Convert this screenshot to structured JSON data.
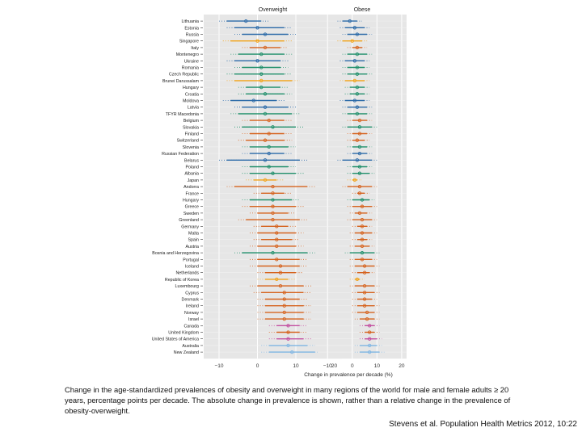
{
  "chart_data": {
    "type": "forest",
    "panels": [
      {
        "title": "Overweight"
      },
      {
        "title": "Obese"
      }
    ],
    "xlabel": "Change in prevalence per decade (%)",
    "xlim": [
      -14,
      22
    ],
    "xticks": [
      -10,
      0,
      10,
      20
    ],
    "colors": {
      "High-income Asia Pacific": "#f2a319",
      "Central Europe": "#1f8f6a",
      "Eastern Europe": "#2b6aa8",
      "Western Europe": "#d6631e",
      "High-income North America": "#c34fa0",
      "Australasia": "#7fb6e4"
    },
    "rows": [
      {
        "country": "Lithuania",
        "region": "Eastern Europe",
        "ow": -3,
        "ow_lo": -8,
        "ow_hi": 1,
        "ob": -1,
        "ob_lo": -4,
        "ob_hi": 2
      },
      {
        "country": "Estonia",
        "region": "Eastern Europe",
        "ow": 0,
        "ow_lo": -6,
        "ow_hi": 7,
        "ob": 1,
        "ob_lo": -3,
        "ob_hi": 5
      },
      {
        "country": "Russia",
        "region": "Eastern Europe",
        "ow": 2,
        "ow_lo": -4,
        "ow_hi": 8,
        "ob": 2,
        "ob_lo": -2,
        "ob_hi": 6
      },
      {
        "country": "Singapore",
        "region": "High-income Asia Pacific",
        "ow": 0,
        "ow_lo": -7,
        "ow_hi": 7,
        "ob": 0,
        "ob_lo": -4,
        "ob_hi": 4
      },
      {
        "country": "Italy",
        "region": "Western Europe",
        "ow": 2,
        "ow_lo": -2,
        "ow_hi": 6,
        "ob": 2,
        "ob_lo": 0,
        "ob_hi": 4
      },
      {
        "country": "Montenegro",
        "region": "Central Europe",
        "ow": 1,
        "ow_lo": -5,
        "ow_hi": 7,
        "ob": 2,
        "ob_lo": -2,
        "ob_hi": 6
      },
      {
        "country": "Ukraine",
        "region": "Eastern Europe",
        "ow": 0,
        "ow_lo": -6,
        "ow_hi": 6,
        "ob": 1,
        "ob_lo": -3,
        "ob_hi": 5
      },
      {
        "country": "Romania",
        "region": "Central Europe",
        "ow": 1,
        "ow_lo": -4,
        "ow_hi": 6,
        "ob": 2,
        "ob_lo": -2,
        "ob_hi": 5
      },
      {
        "country": "Czech Republic",
        "region": "Central Europe",
        "ow": 1,
        "ow_lo": -6,
        "ow_hi": 7,
        "ob": 2,
        "ob_lo": -2,
        "ob_hi": 6
      },
      {
        "country": "Brunei Darussalam",
        "region": "High-income Asia Pacific",
        "ow": 1,
        "ow_lo": -6,
        "ow_hi": 9,
        "ob": 1,
        "ob_lo": -3,
        "ob_hi": 5
      },
      {
        "country": "Hungary",
        "region": "Central Europe",
        "ow": 1,
        "ow_lo": -3,
        "ow_hi": 6,
        "ob": 2,
        "ob_lo": -1,
        "ob_hi": 5
      },
      {
        "country": "Croatia",
        "region": "Central Europe",
        "ow": 2,
        "ow_lo": -3,
        "ow_hi": 7,
        "ob": 2,
        "ob_lo": -1,
        "ob_hi": 5
      },
      {
        "country": "Moldova",
        "region": "Eastern Europe",
        "ow": -1,
        "ow_lo": -7,
        "ow_hi": 5,
        "ob": 1,
        "ob_lo": -3,
        "ob_hi": 5
      },
      {
        "country": "Latvia",
        "region": "Eastern Europe",
        "ow": 2,
        "ow_lo": -4,
        "ow_hi": 8,
        "ob": 2,
        "ob_lo": -2,
        "ob_hi": 6
      },
      {
        "country": "TFYR Macedonia",
        "region": "Central Europe",
        "ow": 2,
        "ow_lo": -5,
        "ow_hi": 9,
        "ob": 2,
        "ob_lo": -2,
        "ob_hi": 6
      },
      {
        "country": "Belgium",
        "region": "Western Europe",
        "ow": 3,
        "ow_lo": -2,
        "ow_hi": 7,
        "ob": 3,
        "ob_lo": 0,
        "ob_hi": 6
      },
      {
        "country": "Slovakia",
        "region": "Central Europe",
        "ow": 4,
        "ow_lo": -4,
        "ow_hi": 10,
        "ob": 3,
        "ob_lo": -2,
        "ob_hi": 8
      },
      {
        "country": "Finland",
        "region": "Western Europe",
        "ow": 3,
        "ow_lo": -2,
        "ow_hi": 7,
        "ob": 3,
        "ob_lo": 0,
        "ob_hi": 6
      },
      {
        "country": "Switzerland",
        "region": "Western Europe",
        "ow": 2,
        "ow_lo": -3,
        "ow_hi": 7,
        "ob": 2,
        "ob_lo": 0,
        "ob_hi": 5
      },
      {
        "country": "Slovenia",
        "region": "Central Europe",
        "ow": 3,
        "ow_lo": -2,
        "ow_hi": 8,
        "ob": 3,
        "ob_lo": 0,
        "ob_hi": 6
      },
      {
        "country": "Russian Federation",
        "region": "Eastern Europe",
        "ow": 3,
        "ow_lo": -2,
        "ow_hi": 7,
        "ob": 3,
        "ob_lo": 0,
        "ob_hi": 6
      },
      {
        "country": "Belarus",
        "region": "Eastern Europe",
        "ow": 2,
        "ow_lo": -8,
        "ow_hi": 11,
        "ob": 2,
        "ob_lo": -4,
        "ob_hi": 8
      },
      {
        "country": "Poland",
        "region": "Central Europe",
        "ow": 3,
        "ow_lo": -2,
        "ow_hi": 8,
        "ob": 3,
        "ob_lo": 0,
        "ob_hi": 6
      },
      {
        "country": "Albania",
        "region": "Central Europe",
        "ow": 4,
        "ow_lo": -2,
        "ow_hi": 10,
        "ob": 3,
        "ob_lo": 0,
        "ob_hi": 7
      },
      {
        "country": "Japan",
        "region": "High-income Asia Pacific",
        "ow": 2,
        "ow_lo": -1,
        "ow_hi": 5,
        "ob": 1,
        "ob_lo": 0,
        "ob_hi": 2
      },
      {
        "country": "Andorra",
        "region": "Western Europe",
        "ow": 4,
        "ow_lo": -6,
        "ow_hi": 13,
        "ob": 3,
        "ob_lo": -2,
        "ob_hi": 8
      },
      {
        "country": "France",
        "region": "Western Europe",
        "ow": 4,
        "ow_lo": 1,
        "ow_hi": 7,
        "ob": 3,
        "ob_lo": 2,
        "ob_hi": 5
      },
      {
        "country": "Hungary",
        "region": "Central Europe",
        "ow": 4,
        "ow_lo": -2,
        "ow_hi": 9,
        "ob": 4,
        "ob_lo": 0,
        "ob_hi": 7
      },
      {
        "country": "Greece",
        "region": "Western Europe",
        "ow": 4,
        "ow_lo": -2,
        "ow_hi": 10,
        "ob": 4,
        "ob_lo": 0,
        "ob_hi": 8
      },
      {
        "country": "Sweden",
        "region": "Western Europe",
        "ow": 4,
        "ow_lo": 0,
        "ow_hi": 8,
        "ob": 3,
        "ob_lo": 1,
        "ob_hi": 6
      },
      {
        "country": "Greenland",
        "region": "Western Europe",
        "ow": 4,
        "ow_lo": -3,
        "ow_hi": 11,
        "ob": 4,
        "ob_lo": 0,
        "ob_hi": 8
      },
      {
        "country": "Germany",
        "region": "Western Europe",
        "ow": 5,
        "ow_lo": 1,
        "ow_hi": 8,
        "ob": 4,
        "ob_lo": 2,
        "ob_hi": 6
      },
      {
        "country": "Malta",
        "region": "Western Europe",
        "ow": 5,
        "ow_lo": 0,
        "ow_hi": 10,
        "ob": 4,
        "ob_lo": 1,
        "ob_hi": 8
      },
      {
        "country": "Spain",
        "region": "Western Europe",
        "ow": 5,
        "ow_lo": 1,
        "ow_hi": 9,
        "ob": 4,
        "ob_lo": 2,
        "ob_hi": 6
      },
      {
        "country": "Austria",
        "region": "Western Europe",
        "ow": 5,
        "ow_lo": 0,
        "ow_hi": 10,
        "ob": 4,
        "ob_lo": 1,
        "ob_hi": 7
      },
      {
        "country": "Bosnia and Herzegovina",
        "region": "Central Europe",
        "ow": 4,
        "ow_lo": -4,
        "ow_hi": 13,
        "ob": 4,
        "ob_lo": -1,
        "ob_hi": 9
      },
      {
        "country": "Portugal",
        "region": "Western Europe",
        "ow": 5,
        "ow_lo": 0,
        "ow_hi": 11,
        "ob": 4,
        "ob_lo": 1,
        "ob_hi": 8
      },
      {
        "country": "Iceland",
        "region": "Western Europe",
        "ow": 6,
        "ow_lo": 0,
        "ow_hi": 11,
        "ob": 5,
        "ob_lo": 1,
        "ob_hi": 9
      },
      {
        "country": "Netherlands",
        "region": "Western Europe",
        "ow": 6,
        "ow_lo": 2,
        "ow_hi": 10,
        "ob": 5,
        "ob_lo": 2,
        "ob_hi": 7
      },
      {
        "country": "Republic of Korea",
        "region": "High-income Asia Pacific",
        "ow": 5,
        "ow_lo": 2,
        "ow_hi": 8,
        "ob": 2,
        "ob_lo": 1,
        "ob_hi": 3
      },
      {
        "country": "Luxembourg",
        "region": "Western Europe",
        "ow": 6,
        "ow_lo": 0,
        "ow_hi": 12,
        "ob": 5,
        "ob_lo": 1,
        "ob_hi": 9
      },
      {
        "country": "Cyprus",
        "region": "Western Europe",
        "ow": 7,
        "ow_lo": 1,
        "ow_hi": 12,
        "ob": 5,
        "ob_lo": 2,
        "ob_hi": 9
      },
      {
        "country": "Denmark",
        "region": "Western Europe",
        "ow": 7,
        "ow_lo": 2,
        "ow_hi": 11,
        "ob": 5,
        "ob_lo": 2,
        "ob_hi": 8
      },
      {
        "country": "Ireland",
        "region": "Western Europe",
        "ow": 7,
        "ow_lo": 2,
        "ow_hi": 12,
        "ob": 5,
        "ob_lo": 2,
        "ob_hi": 9
      },
      {
        "country": "Norway",
        "region": "Western Europe",
        "ow": 7,
        "ow_lo": 2,
        "ow_hi": 12,
        "ob": 6,
        "ob_lo": 2,
        "ob_hi": 9
      },
      {
        "country": "Israel",
        "region": "Western Europe",
        "ow": 7,
        "ow_lo": 2,
        "ow_hi": 12,
        "ob": 6,
        "ob_lo": 3,
        "ob_hi": 9
      },
      {
        "country": "Canada",
        "region": "High-income North America",
        "ow": 8,
        "ow_lo": 5,
        "ow_hi": 11,
        "ob": 7,
        "ob_lo": 5,
        "ob_hi": 9
      },
      {
        "country": "United Kingdom",
        "region": "Western Europe",
        "ow": 8,
        "ow_lo": 5,
        "ow_hi": 11,
        "ob": 7,
        "ob_lo": 5,
        "ob_hi": 9
      },
      {
        "country": "United States of America",
        "region": "High-income North America",
        "ow": 8,
        "ow_lo": 5,
        "ow_hi": 12,
        "ob": 7,
        "ob_lo": 5,
        "ob_hi": 10
      },
      {
        "country": "Australia",
        "region": "Australasia",
        "ow": 8,
        "ow_lo": 3,
        "ow_hi": 13,
        "ob": 7,
        "ob_lo": 3,
        "ob_hi": 10
      },
      {
        "country": "New Zealand",
        "region": "Australasia",
        "ow": 9,
        "ow_lo": 3,
        "ow_hi": 15,
        "ob": 7,
        "ob_lo": 3,
        "ob_hi": 11
      }
    ]
  },
  "caption": "Change in the age-standardized prevalences of obesity and overweight in many regions of the world for male and female adults ≥ 20 years, percentage points per decade. The absolute change in prevalence is shown, rather than a relative change in the prevalence of obesity-overweight.",
  "citation": "Stevens et al. Population Health Metrics 2012, 10:22"
}
